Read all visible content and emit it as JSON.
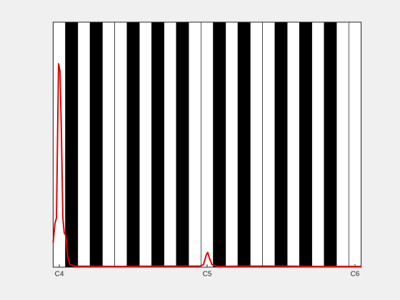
{
  "chart_data": {
    "type": "line",
    "x": [
      59.5,
      59.65,
      59.77,
      59.85,
      59.94,
      60.06,
      60.17,
      60.29,
      60.4,
      60.52,
      60.69,
      60.87,
      61.27,
      65.0,
      68.0,
      71.4,
      71.7,
      71.93,
      72.05,
      72.16,
      72.4,
      72.85,
      75.5,
      78.37,
      81.0,
      84.2,
      84.5
    ],
    "series": [
      {
        "color": "#e60000",
        "values": [
          0.1,
          0.18,
          0.2,
          0.5,
          0.83,
          0.8,
          0.55,
          0.2,
          0.14,
          0.13,
          0.04,
          0.01,
          0.004,
          0.003,
          0.004,
          0.004,
          0.01,
          0.05,
          0.06,
          0.04,
          0.01,
          0.003,
          0.004,
          0.004,
          0.003,
          0.003,
          0.003
        ]
      }
    ],
    "xlim": [
      59.5,
      84.5
    ],
    "xticks": [
      {
        "value": 60,
        "label": "C4"
      },
      {
        "value": 72,
        "label": "C5"
      },
      {
        "value": 84,
        "label": "C6"
      }
    ],
    "ylim": [
      0,
      1
    ]
  }
}
